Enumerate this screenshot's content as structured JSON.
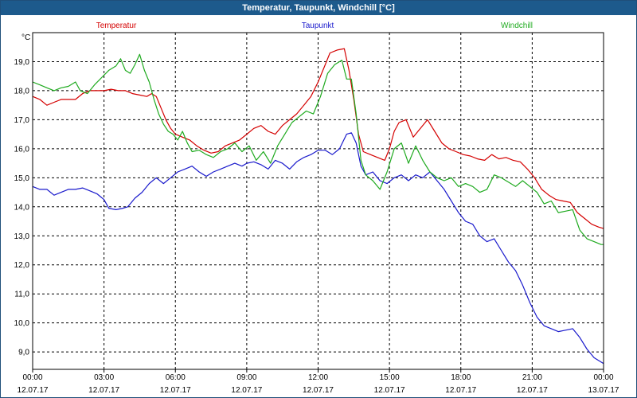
{
  "window": {
    "title": "Temperatur, Taupunkt, Windchill [°C]"
  },
  "chart_data": {
    "type": "line",
    "title": "Temperatur, Taupunkt, Windchill [°C]",
    "ylabel": "°C",
    "xlabel": "",
    "ylim": [
      8.4,
      20.0
    ],
    "xlim": [
      0,
      24
    ],
    "grid": true,
    "yticks": [
      {
        "value": 9.0,
        "label": "9,0"
      },
      {
        "value": 10.0,
        "label": "10,0"
      },
      {
        "value": 11.0,
        "label": "11,0"
      },
      {
        "value": 12.0,
        "label": "12,0"
      },
      {
        "value": 13.0,
        "label": "13,0"
      },
      {
        "value": 14.0,
        "label": "14,0"
      },
      {
        "value": 15.0,
        "label": "15,0"
      },
      {
        "value": 16.0,
        "label": "16,0"
      },
      {
        "value": 17.0,
        "label": "17,0"
      },
      {
        "value": 18.0,
        "label": "18,0"
      },
      {
        "value": 19.0,
        "label": "19,0"
      }
    ],
    "xticks": [
      {
        "value": 0,
        "time": "00:00",
        "date": "12.07.17"
      },
      {
        "value": 3,
        "time": "03:00",
        "date": "12.07.17"
      },
      {
        "value": 6,
        "time": "06:00",
        "date": "12.07.17"
      },
      {
        "value": 9,
        "time": "09:00",
        "date": "12.07.17"
      },
      {
        "value": 12,
        "time": "12:00",
        "date": "12.07.17"
      },
      {
        "value": 15,
        "time": "15:00",
        "date": "12.07.17"
      },
      {
        "value": 18,
        "time": "18:00",
        "date": "12.07.17"
      },
      {
        "value": 21,
        "time": "21:00",
        "date": "12.07.17"
      },
      {
        "value": 24,
        "time": "00:00",
        "date": "13.07.17"
      }
    ],
    "series": [
      {
        "name": "Temperatur",
        "color": "#d40000",
        "legend_pos": "top-left",
        "points": [
          [
            0,
            17.8
          ],
          [
            0.3,
            17.7
          ],
          [
            0.6,
            17.5
          ],
          [
            0.9,
            17.6
          ],
          [
            1.2,
            17.7
          ],
          [
            1.5,
            17.7
          ],
          [
            1.8,
            17.7
          ],
          [
            2.1,
            17.9
          ],
          [
            2.4,
            18.0
          ],
          [
            2.7,
            18.0
          ],
          [
            3.0,
            18.0
          ],
          [
            3.3,
            18.05
          ],
          [
            3.6,
            18.0
          ],
          [
            3.9,
            18.0
          ],
          [
            4.2,
            17.9
          ],
          [
            4.5,
            17.85
          ],
          [
            4.8,
            17.8
          ],
          [
            5.0,
            17.9
          ],
          [
            5.2,
            17.8
          ],
          [
            5.4,
            17.4
          ],
          [
            5.6,
            17.0
          ],
          [
            5.8,
            16.7
          ],
          [
            6.0,
            16.5
          ],
          [
            6.3,
            16.4
          ],
          [
            6.6,
            16.3
          ],
          [
            6.9,
            16.1
          ],
          [
            7.2,
            15.95
          ],
          [
            7.5,
            15.85
          ],
          [
            7.8,
            15.9
          ],
          [
            8.1,
            16.1
          ],
          [
            8.4,
            16.2
          ],
          [
            8.7,
            16.3
          ],
          [
            9.0,
            16.5
          ],
          [
            9.3,
            16.7
          ],
          [
            9.6,
            16.8
          ],
          [
            9.9,
            16.6
          ],
          [
            10.2,
            16.5
          ],
          [
            10.5,
            16.8
          ],
          [
            10.8,
            17.0
          ],
          [
            11.1,
            17.2
          ],
          [
            11.4,
            17.5
          ],
          [
            11.7,
            17.8
          ],
          [
            12.0,
            18.3
          ],
          [
            12.3,
            18.9
          ],
          [
            12.5,
            19.3
          ],
          [
            12.8,
            19.4
          ],
          [
            13.1,
            19.45
          ],
          [
            13.3,
            18.7
          ],
          [
            13.5,
            17.7
          ],
          [
            13.7,
            16.5
          ],
          [
            13.9,
            15.9
          ],
          [
            14.2,
            15.8
          ],
          [
            14.5,
            15.7
          ],
          [
            14.8,
            15.6
          ],
          [
            15.0,
            16.0
          ],
          [
            15.2,
            16.6
          ],
          [
            15.4,
            16.9
          ],
          [
            15.7,
            17.0
          ],
          [
            16.0,
            16.4
          ],
          [
            16.3,
            16.7
          ],
          [
            16.6,
            17.0
          ],
          [
            16.9,
            16.6
          ],
          [
            17.2,
            16.2
          ],
          [
            17.5,
            16.0
          ],
          [
            17.8,
            15.9
          ],
          [
            18.1,
            15.8
          ],
          [
            18.4,
            15.75
          ],
          [
            18.7,
            15.65
          ],
          [
            19.0,
            15.6
          ],
          [
            19.3,
            15.8
          ],
          [
            19.6,
            15.65
          ],
          [
            19.9,
            15.7
          ],
          [
            20.2,
            15.6
          ],
          [
            20.5,
            15.55
          ],
          [
            20.8,
            15.3
          ],
          [
            21.1,
            15.0
          ],
          [
            21.4,
            14.6
          ],
          [
            21.7,
            14.4
          ],
          [
            22.0,
            14.25
          ],
          [
            22.3,
            14.2
          ],
          [
            22.6,
            14.15
          ],
          [
            22.9,
            13.8
          ],
          [
            23.2,
            13.6
          ],
          [
            23.5,
            13.4
          ],
          [
            23.8,
            13.3
          ],
          [
            24.0,
            13.25
          ]
        ]
      },
      {
        "name": "Taupunkt",
        "color": "#1a1acc",
        "legend_pos": "top-center",
        "points": [
          [
            0,
            14.7
          ],
          [
            0.3,
            14.6
          ],
          [
            0.6,
            14.6
          ],
          [
            0.9,
            14.4
          ],
          [
            1.2,
            14.5
          ],
          [
            1.5,
            14.6
          ],
          [
            1.8,
            14.6
          ],
          [
            2.1,
            14.65
          ],
          [
            2.4,
            14.55
          ],
          [
            2.7,
            14.45
          ],
          [
            3.0,
            14.25
          ],
          [
            3.2,
            13.95
          ],
          [
            3.5,
            13.9
          ],
          [
            3.8,
            13.95
          ],
          [
            4.0,
            14.0
          ],
          [
            4.3,
            14.3
          ],
          [
            4.6,
            14.5
          ],
          [
            4.9,
            14.8
          ],
          [
            5.2,
            15.0
          ],
          [
            5.5,
            14.8
          ],
          [
            5.8,
            15.0
          ],
          [
            6.1,
            15.2
          ],
          [
            6.4,
            15.3
          ],
          [
            6.7,
            15.4
          ],
          [
            7.0,
            15.2
          ],
          [
            7.3,
            15.05
          ],
          [
            7.6,
            15.2
          ],
          [
            7.9,
            15.3
          ],
          [
            8.2,
            15.4
          ],
          [
            8.5,
            15.5
          ],
          [
            8.8,
            15.4
          ],
          [
            9.0,
            15.5
          ],
          [
            9.3,
            15.55
          ],
          [
            9.6,
            15.45
          ],
          [
            9.9,
            15.3
          ],
          [
            10.2,
            15.6
          ],
          [
            10.5,
            15.5
          ],
          [
            10.8,
            15.3
          ],
          [
            11.1,
            15.55
          ],
          [
            11.4,
            15.7
          ],
          [
            11.7,
            15.8
          ],
          [
            12.0,
            15.95
          ],
          [
            12.3,
            15.95
          ],
          [
            12.6,
            15.8
          ],
          [
            12.9,
            16.0
          ],
          [
            13.2,
            16.5
          ],
          [
            13.4,
            16.55
          ],
          [
            13.6,
            16.2
          ],
          [
            13.8,
            15.4
          ],
          [
            14.0,
            15.1
          ],
          [
            14.3,
            15.2
          ],
          [
            14.6,
            14.9
          ],
          [
            14.9,
            14.8
          ],
          [
            15.2,
            15.0
          ],
          [
            15.5,
            15.1
          ],
          [
            15.8,
            14.9
          ],
          [
            16.1,
            15.1
          ],
          [
            16.4,
            15.0
          ],
          [
            16.7,
            15.2
          ],
          [
            17.0,
            14.9
          ],
          [
            17.3,
            14.6
          ],
          [
            17.6,
            14.2
          ],
          [
            17.9,
            13.8
          ],
          [
            18.2,
            13.5
          ],
          [
            18.5,
            13.4
          ],
          [
            18.8,
            13.0
          ],
          [
            19.1,
            12.8
          ],
          [
            19.4,
            12.9
          ],
          [
            19.7,
            12.5
          ],
          [
            20.0,
            12.1
          ],
          [
            20.3,
            11.8
          ],
          [
            20.6,
            11.3
          ],
          [
            20.9,
            10.7
          ],
          [
            21.2,
            10.2
          ],
          [
            21.5,
            9.9
          ],
          [
            21.8,
            9.8
          ],
          [
            22.1,
            9.7
          ],
          [
            22.4,
            9.75
          ],
          [
            22.7,
            9.8
          ],
          [
            23.0,
            9.5
          ],
          [
            23.3,
            9.1
          ],
          [
            23.6,
            8.8
          ],
          [
            23.9,
            8.65
          ],
          [
            24.0,
            8.6
          ]
        ]
      },
      {
        "name": "Windchill",
        "color": "#1faa1f",
        "legend_pos": "top-right",
        "points": [
          [
            0,
            18.3
          ],
          [
            0.3,
            18.2
          ],
          [
            0.6,
            18.1
          ],
          [
            0.9,
            18.0
          ],
          [
            1.2,
            18.1
          ],
          [
            1.5,
            18.15
          ],
          [
            1.8,
            18.3
          ],
          [
            2.0,
            18.0
          ],
          [
            2.3,
            17.9
          ],
          [
            2.6,
            18.2
          ],
          [
            2.9,
            18.45
          ],
          [
            3.2,
            18.7
          ],
          [
            3.5,
            18.85
          ],
          [
            3.7,
            19.1
          ],
          [
            3.9,
            18.7
          ],
          [
            4.1,
            18.6
          ],
          [
            4.3,
            18.9
          ],
          [
            4.5,
            19.25
          ],
          [
            4.7,
            18.7
          ],
          [
            4.9,
            18.3
          ],
          [
            5.1,
            17.7
          ],
          [
            5.3,
            17.2
          ],
          [
            5.5,
            16.85
          ],
          [
            5.7,
            16.6
          ],
          [
            5.9,
            16.5
          ],
          [
            6.1,
            16.3
          ],
          [
            6.3,
            16.6
          ],
          [
            6.5,
            16.2
          ],
          [
            6.7,
            15.9
          ],
          [
            7.0,
            15.95
          ],
          [
            7.3,
            15.8
          ],
          [
            7.6,
            15.7
          ],
          [
            7.9,
            15.9
          ],
          [
            8.2,
            16.0
          ],
          [
            8.5,
            16.2
          ],
          [
            8.8,
            15.9
          ],
          [
            9.1,
            16.1
          ],
          [
            9.4,
            15.6
          ],
          [
            9.7,
            15.9
          ],
          [
            10.0,
            15.5
          ],
          [
            10.3,
            16.1
          ],
          [
            10.6,
            16.5
          ],
          [
            10.9,
            16.9
          ],
          [
            11.2,
            17.1
          ],
          [
            11.5,
            17.3
          ],
          [
            11.8,
            17.2
          ],
          [
            12.1,
            17.8
          ],
          [
            12.4,
            18.6
          ],
          [
            12.7,
            18.9
          ],
          [
            13.0,
            19.05
          ],
          [
            13.2,
            18.4
          ],
          [
            13.4,
            18.4
          ],
          [
            13.6,
            17.2
          ],
          [
            13.8,
            15.6
          ],
          [
            14.0,
            15.1
          ],
          [
            14.3,
            14.9
          ],
          [
            14.6,
            14.6
          ],
          [
            14.9,
            15.2
          ],
          [
            15.2,
            16.0
          ],
          [
            15.5,
            16.2
          ],
          [
            15.8,
            15.5
          ],
          [
            16.1,
            16.1
          ],
          [
            16.4,
            15.6
          ],
          [
            16.7,
            15.2
          ],
          [
            17.0,
            15.0
          ],
          [
            17.3,
            14.9
          ],
          [
            17.6,
            15.0
          ],
          [
            17.9,
            14.7
          ],
          [
            18.2,
            14.8
          ],
          [
            18.5,
            14.7
          ],
          [
            18.8,
            14.5
          ],
          [
            19.1,
            14.6
          ],
          [
            19.4,
            15.1
          ],
          [
            19.7,
            15.0
          ],
          [
            20.0,
            14.85
          ],
          [
            20.3,
            14.7
          ],
          [
            20.6,
            14.9
          ],
          [
            20.9,
            14.7
          ],
          [
            21.2,
            14.5
          ],
          [
            21.5,
            14.1
          ],
          [
            21.8,
            14.2
          ],
          [
            22.1,
            13.8
          ],
          [
            22.4,
            13.85
          ],
          [
            22.7,
            13.9
          ],
          [
            23.0,
            13.2
          ],
          [
            23.3,
            12.9
          ],
          [
            23.6,
            12.8
          ],
          [
            23.9,
            12.7
          ],
          [
            24.0,
            12.7
          ]
        ]
      }
    ]
  }
}
